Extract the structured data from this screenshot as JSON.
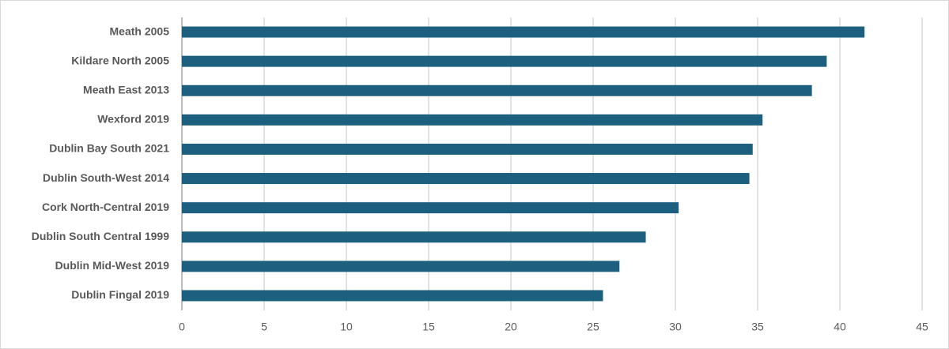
{
  "chart_data": {
    "type": "bar",
    "orientation": "horizontal",
    "categories": [
      "Meath 2005",
      "Kildare North 2005",
      "Meath East 2013",
      "Wexford 2019",
      "Dublin Bay South 2021",
      "Dublin South-West 2014",
      "Cork North-Central 2019",
      "Dublin South Central 1999",
      "Dublin Mid-West 2019",
      "Dublin Fingal 2019"
    ],
    "values": [
      41.5,
      39.2,
      38.3,
      35.3,
      34.7,
      34.5,
      30.2,
      28.2,
      26.6,
      25.6
    ],
    "color": "#1d5f7f",
    "xlim": [
      0,
      45
    ],
    "xticks": [
      0,
      5,
      10,
      15,
      20,
      25,
      30,
      35,
      40,
      45
    ],
    "grid": true
  }
}
